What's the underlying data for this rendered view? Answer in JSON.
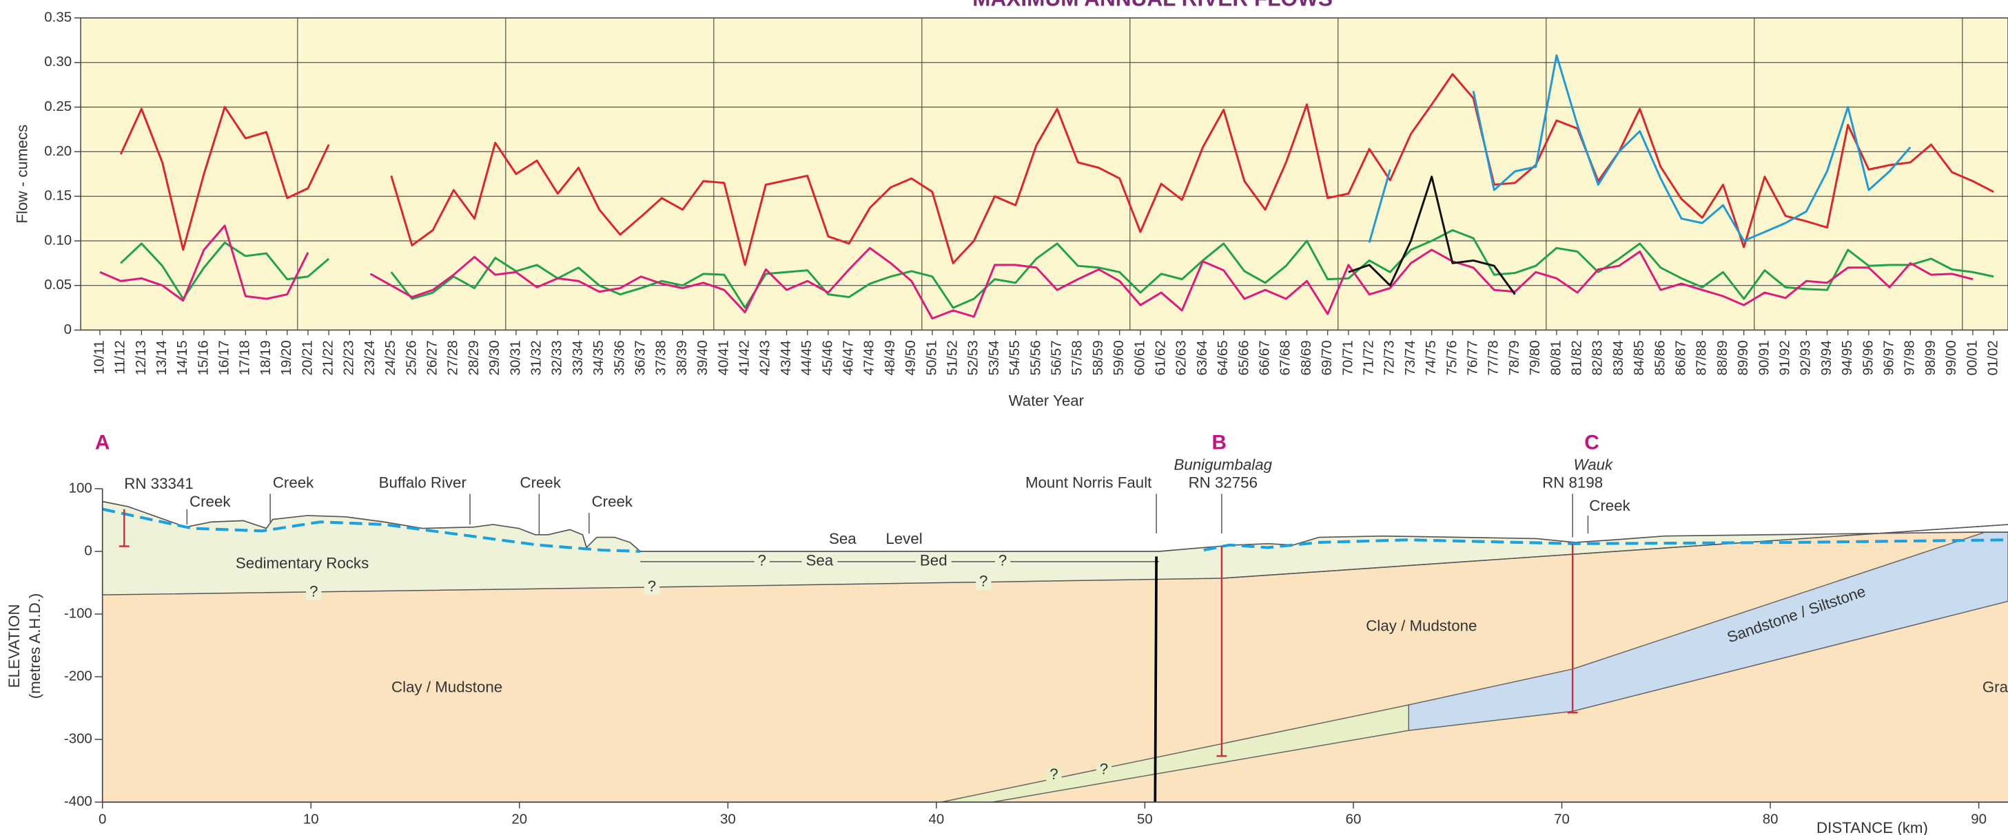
{
  "chart_data": [
    {
      "type": "line",
      "title": "MAXIMUM ANNUAL RIVER FLOWS",
      "y_label": "Flow - cumecs",
      "x_label": "Water Year",
      "categories": [
        "10/11",
        "11/12",
        "12/13",
        "13/14",
        "14/15",
        "15/16",
        "16/17",
        "17/18",
        "18/19",
        "19/20",
        "20/21",
        "21/22",
        "22/23",
        "23/24",
        "24/25",
        "25/26",
        "26/27",
        "27/28",
        "28/29",
        "29/30",
        "30/31",
        "31/32",
        "32/33",
        "33/34",
        "34/35",
        "35/36",
        "36/37",
        "37/38",
        "38/39",
        "39/40",
        "40/41",
        "41/42",
        "42/43",
        "43/44",
        "44/45",
        "45/46",
        "46/47",
        "47/48",
        "48/49",
        "49/50",
        "50/51",
        "51/52",
        "52/53",
        "53/54",
        "54/55",
        "55/56",
        "56/57",
        "57/58",
        "58/59",
        "59/60",
        "60/61",
        "61/62",
        "62/63",
        "63/64",
        "64/65",
        "65/66",
        "66/67",
        "67/68",
        "68/69",
        "69/70",
        "70/71",
        "71/72",
        "72/73",
        "73/74",
        "74/75",
        "75/76",
        "76/77",
        "77/78",
        "78/79",
        "79/80",
        "80/81",
        "81/82",
        "82/83",
        "83/84",
        "84/85",
        "85/86",
        "86/87",
        "87/88",
        "88/89",
        "89/90",
        "90/91",
        "91/92",
        "92/93",
        "93/94",
        "94/95",
        "95/96",
        "96/97",
        "97/98",
        "98/99",
        "99/00",
        "00/01",
        "01/02"
      ],
      "series": [
        {
          "color": "#e0242b",
          "values": [
            null,
            0.197,
            0.248,
            0.188,
            0.09,
            0.175,
            0.25,
            0.215,
            0.222,
            0.148,
            0.159,
            0.208,
            null,
            null,
            0.173,
            0.095,
            0.112,
            0.157,
            0.125,
            0.21,
            0.175,
            0.19,
            0.153,
            0.182,
            0.135,
            0.107,
            0.127,
            0.148,
            0.135,
            0.167,
            0.165,
            0.073,
            0.163,
            0.168,
            0.173,
            0.105,
            0.097,
            0.137,
            0.16,
            0.17,
            0.155,
            0.075,
            0.1,
            0.15,
            0.14,
            0.207,
            0.248,
            0.188,
            0.182,
            0.17,
            0.11,
            0.164,
            0.146,
            0.205,
            0.247,
            0.167,
            0.135,
            0.188,
            0.253,
            0.148,
            0.153,
            0.203,
            0.168,
            0.22,
            0.253,
            0.287,
            0.26,
            0.163,
            0.165,
            0.185,
            0.235,
            0.226,
            0.167,
            0.2,
            0.248,
            0.183,
            0.147,
            0.126,
            0.163,
            0.093,
            0.172,
            0.128,
            0.122,
            0.115,
            0.23,
            0.18,
            0.185,
            0.188,
            0.208,
            0.177,
            0.167,
            0.155
          ]
        },
        {
          "color": "#1ea24a",
          "values": [
            null,
            0.075,
            0.097,
            0.072,
            0.035,
            0.07,
            0.098,
            0.083,
            0.086,
            0.057,
            0.06,
            0.08,
            null,
            null,
            0.065,
            0.035,
            0.042,
            0.06,
            0.047,
            0.081,
            0.066,
            0.073,
            0.058,
            0.07,
            0.05,
            0.04,
            0.047,
            0.055,
            0.05,
            0.063,
            0.062,
            0.025,
            0.063,
            0.065,
            0.067,
            0.04,
            0.037,
            0.052,
            0.06,
            0.066,
            0.06,
            0.025,
            0.035,
            0.057,
            0.053,
            0.08,
            0.097,
            0.072,
            0.07,
            0.065,
            0.042,
            0.063,
            0.057,
            0.078,
            0.097,
            0.066,
            0.053,
            0.072,
            0.1,
            0.057,
            0.058,
            0.078,
            0.065,
            0.09,
            0.1,
            0.112,
            0.103,
            0.062,
            0.064,
            0.072,
            0.092,
            0.088,
            0.065,
            0.08,
            0.097,
            0.07,
            0.058,
            0.048,
            0.065,
            0.035,
            0.067,
            0.048,
            0.046,
            0.045,
            0.09,
            0.072,
            0.073,
            0.073,
            0.08,
            0.068,
            0.065,
            0.06
          ]
        },
        {
          "color": "#e0197d",
          "values": [
            0.065,
            0.055,
            0.058,
            0.05,
            0.033,
            0.09,
            0.117,
            0.038,
            0.035,
            0.04,
            0.087,
            null,
            null,
            0.063,
            0.05,
            0.037,
            0.045,
            0.062,
            0.082,
            0.062,
            0.065,
            0.048,
            0.058,
            0.055,
            0.043,
            0.047,
            0.06,
            0.052,
            0.047,
            0.053,
            0.045,
            0.02,
            0.068,
            0.045,
            0.055,
            0.042,
            0.068,
            0.092,
            0.075,
            0.055,
            0.013,
            0.022,
            0.015,
            0.073,
            0.073,
            0.07,
            0.045,
            0.057,
            0.068,
            0.055,
            0.028,
            0.042,
            0.022,
            0.077,
            0.067,
            0.035,
            0.045,
            0.035,
            0.055,
            0.018,
            0.073,
            0.04,
            0.047,
            0.075,
            0.09,
            0.077,
            0.07,
            0.045,
            0.043,
            0.065,
            0.058,
            0.042,
            0.068,
            0.072,
            0.088,
            0.045,
            0.052,
            0.045,
            0.038,
            0.028,
            0.042,
            0.036,
            0.055,
            0.053,
            0.07,
            0.07,
            0.048,
            0.075,
            0.062,
            0.063,
            0.057,
            null
          ]
        },
        {
          "color": "#1f9ad6",
          "values": [
            null,
            null,
            null,
            null,
            null,
            null,
            null,
            null,
            null,
            null,
            null,
            null,
            null,
            null,
            null,
            null,
            null,
            null,
            null,
            null,
            null,
            null,
            null,
            null,
            null,
            null,
            null,
            null,
            null,
            null,
            null,
            null,
            null,
            null,
            null,
            null,
            null,
            null,
            null,
            null,
            null,
            null,
            null,
            null,
            null,
            null,
            null,
            null,
            null,
            null,
            null,
            null,
            null,
            null,
            null,
            null,
            null,
            null,
            null,
            null,
            null,
            0.098,
            0.18,
            null,
            null,
            null,
            0.268,
            0.157,
            0.178,
            0.183,
            0.308,
            0.23,
            0.163,
            0.2,
            0.223,
            0.17,
            0.125,
            0.12,
            0.14,
            0.1,
            0.11,
            0.12,
            0.133,
            0.178,
            0.25,
            0.157,
            0.178,
            0.205,
            null,
            null,
            null,
            null
          ]
        },
        {
          "color": "#111111",
          "values": [
            null,
            null,
            null,
            null,
            null,
            null,
            null,
            null,
            null,
            null,
            null,
            null,
            null,
            null,
            null,
            null,
            null,
            null,
            null,
            null,
            null,
            null,
            null,
            null,
            null,
            null,
            null,
            null,
            null,
            null,
            null,
            null,
            null,
            null,
            null,
            null,
            null,
            null,
            null,
            null,
            null,
            null,
            null,
            null,
            null,
            null,
            null,
            null,
            null,
            null,
            null,
            null,
            null,
            null,
            null,
            null,
            null,
            null,
            null,
            null,
            0.065,
            0.073,
            0.05,
            0.1,
            0.172,
            0.075,
            0.078,
            0.072,
            0.04,
            null,
            null,
            null,
            null,
            null,
            null,
            null,
            null,
            null,
            null,
            null,
            null,
            null,
            null,
            null,
            null,
            null,
            null,
            null,
            null,
            null,
            null,
            null
          ]
        }
      ],
      "ylim": [
        0,
        0.35
      ],
      "yticks": [
        0,
        0.05,
        {
          "value": 0.1,
          "label": "0.10"
        },
        0.15,
        {
          "value": 0.2,
          "label": "0.20"
        },
        0.25,
        {
          "value": 0.3,
          "label": "0.30"
        },
        0.35
      ],
      "grid": true,
      "background": "#fdf7cf"
    },
    {
      "type": "cross-section",
      "x_label": "DISTANCE (km)",
      "y_label": [
        "ELEVATION",
        "(metres A.H.D.)"
      ],
      "xlim": [
        0,
        91.4
      ],
      "xticks": [
        0,
        10,
        20,
        30,
        40,
        50,
        60,
        70,
        80,
        90
      ],
      "ylim": [
        -400,
        100
      ],
      "yticks": [
        -400,
        -300,
        -200,
        -100,
        0,
        100
      ],
      "labels": [
        "A",
        "B",
        "C",
        "Bunigumbalag",
        "Wauk",
        "RN 33341",
        "Creek",
        "Creek",
        "Buffalo River",
        "Creek",
        "Creek",
        "Mount Norris Fault",
        "RN 32756",
        "RN 8198",
        "Creek",
        "Sea",
        "Level",
        "?",
        "Sea",
        "Bed",
        "?",
        "Sedimentary Rocks",
        "?",
        "?",
        "?",
        "Clay / Mudstone",
        "Clay / Mudstone",
        "Sandstone / Siltstone",
        "Gra",
        "?",
        "?"
      ]
    }
  ]
}
